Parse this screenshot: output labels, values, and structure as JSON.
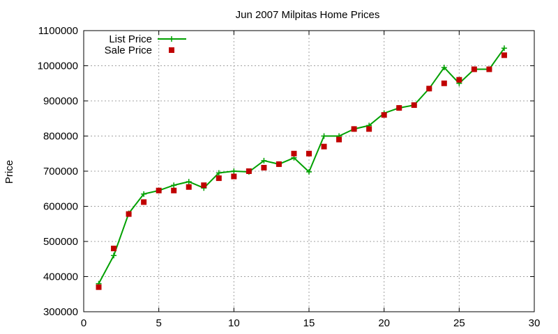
{
  "chart_data": {
    "type": "line",
    "title": "Jun 2007 Milpitas Home Prices",
    "xlabel": "",
    "ylabel": "Price",
    "xlim": [
      0,
      30
    ],
    "ylim": [
      300000,
      1100000
    ],
    "xticks": [
      0,
      5,
      10,
      15,
      20,
      25,
      30
    ],
    "yticks": [
      300000,
      400000,
      500000,
      600000,
      700000,
      800000,
      900000,
      1000000,
      1100000
    ],
    "grid": true,
    "legend_position": "top-left",
    "series": [
      {
        "name": "List Price",
        "style": "line+cross",
        "color": "#00a000",
        "points": [
          [
            1,
            380000
          ],
          [
            2,
            460000
          ],
          [
            3,
            580000
          ],
          [
            4,
            635000
          ],
          [
            5,
            645000
          ],
          [
            6,
            660000
          ],
          [
            7,
            670000
          ],
          [
            8,
            652000
          ],
          [
            9,
            695000
          ],
          [
            10,
            700000
          ],
          [
            11,
            698000
          ],
          [
            12,
            730000
          ],
          [
            13,
            720000
          ],
          [
            14,
            738000
          ],
          [
            15,
            698000
          ],
          [
            16,
            800000
          ],
          [
            17,
            800000
          ],
          [
            18,
            820000
          ],
          [
            19,
            830000
          ],
          [
            20,
            865000
          ],
          [
            21,
            880000
          ],
          [
            22,
            888000
          ],
          [
            23,
            935000
          ],
          [
            24,
            995000
          ],
          [
            25,
            950000
          ],
          [
            26,
            990000
          ],
          [
            27,
            990000
          ],
          [
            28,
            1050000
          ]
        ]
      },
      {
        "name": "Sale Price",
        "style": "square",
        "color": "#c00000",
        "points": [
          [
            1,
            370000
          ],
          [
            2,
            480000
          ],
          [
            3,
            578000
          ],
          [
            4,
            612000
          ],
          [
            5,
            645000
          ],
          [
            6,
            645000
          ],
          [
            7,
            655000
          ],
          [
            8,
            660000
          ],
          [
            9,
            680000
          ],
          [
            10,
            685000
          ],
          [
            11,
            700000
          ],
          [
            12,
            710000
          ],
          [
            13,
            720000
          ],
          [
            14,
            750000
          ],
          [
            15,
            750000
          ],
          [
            16,
            770000
          ],
          [
            17,
            790000
          ],
          [
            18,
            820000
          ],
          [
            19,
            820000
          ],
          [
            20,
            860000
          ],
          [
            21,
            880000
          ],
          [
            22,
            888000
          ],
          [
            23,
            935000
          ],
          [
            24,
            950000
          ],
          [
            25,
            960000
          ],
          [
            26,
            990000
          ],
          [
            27,
            990000
          ],
          [
            28,
            1030000
          ]
        ]
      }
    ]
  }
}
